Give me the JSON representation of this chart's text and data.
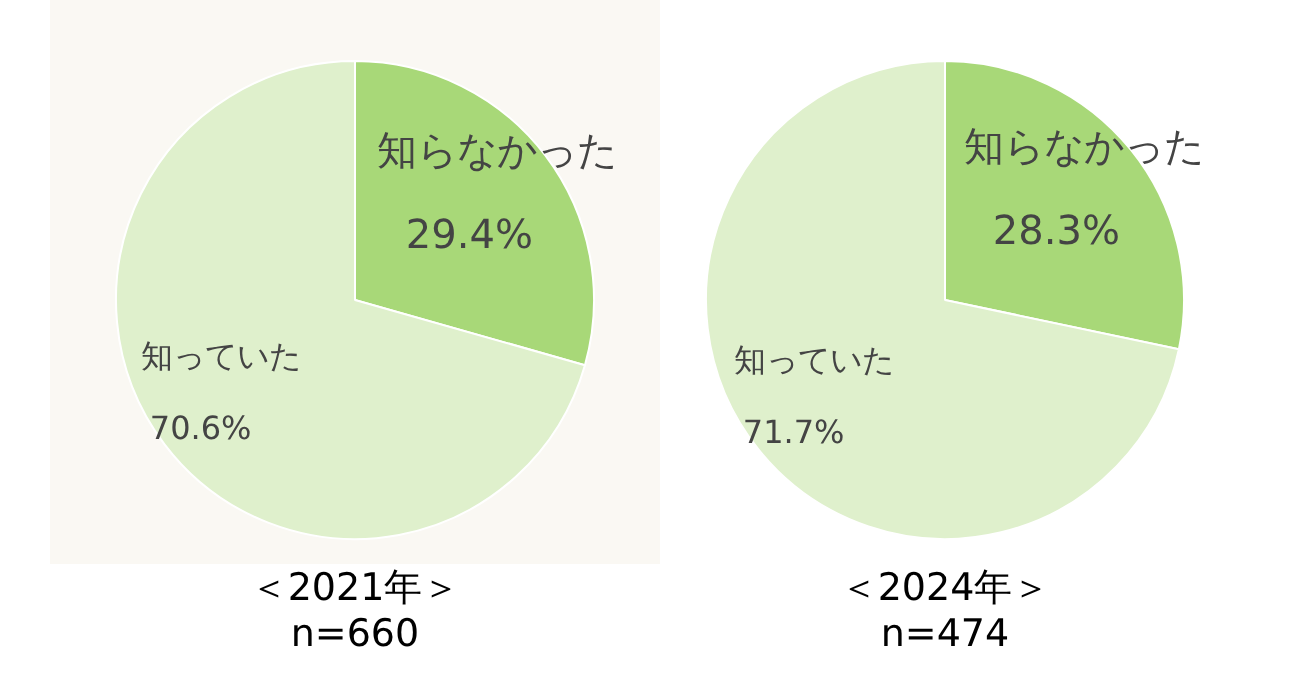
{
  "chart_data": [
    {
      "type": "pie",
      "title": "＜2021年＞",
      "subtitle": "n=660",
      "categories": [
        "知らなかった",
        "知っていた"
      ],
      "values": [
        29.4,
        70.6
      ],
      "colors": [
        "#a8d878",
        "#dff0cc"
      ],
      "value_labels": [
        "29.4%",
        "70.6%"
      ],
      "legend": false
    },
    {
      "type": "pie",
      "title": "＜2024年＞",
      "subtitle": "n=474",
      "categories": [
        "知らなかった",
        "知っていた"
      ],
      "values": [
        28.3,
        71.7
      ],
      "colors": [
        "#a8d878",
        "#dff0cc"
      ],
      "value_labels": [
        "28.3%",
        "71.7%"
      ],
      "legend": false
    }
  ]
}
